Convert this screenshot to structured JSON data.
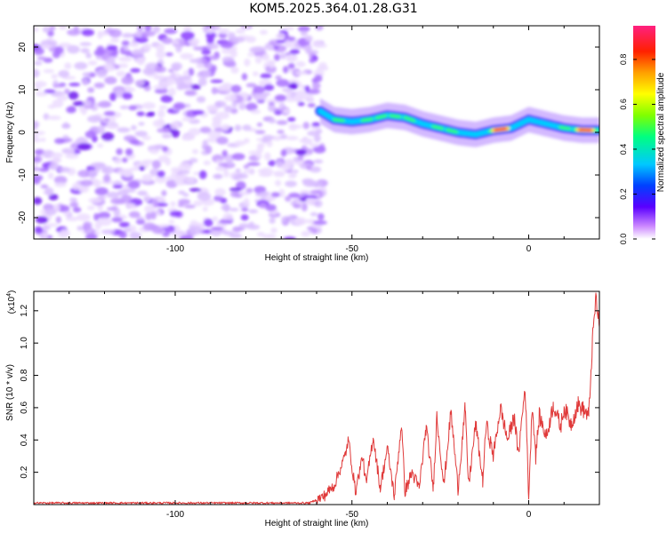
{
  "title": "KOM5.2025.364.01.28.G31",
  "chart_data": [
    {
      "type": "heatmap",
      "xlabel": "Height of straight line (km)",
      "ylabel": "Frequency (Hz)",
      "xlim": [
        -140,
        20
      ],
      "ylim": [
        -25,
        25
      ],
      "xticks": [
        -100,
        -50,
        0
      ],
      "xtick_labels": [
        "-100",
        "-50",
        "0"
      ],
      "yticks": [
        -20,
        -10,
        0,
        10,
        20
      ],
      "ytick_labels": [
        "-20",
        "-10",
        "0",
        "10",
        "20"
      ],
      "colorbar": {
        "label": "Normalized spectral amplitude",
        "range": [
          0.0,
          0.95
        ],
        "ticks": [
          0.0,
          0.2,
          0.4,
          0.6,
          0.8
        ],
        "tick_labels": [
          "0.0",
          "0.2",
          "0.4",
          "0.6",
          "0.8"
        ]
      },
      "noise_region_x": [
        -140,
        -58
      ],
      "signal_track": {
        "x": [
          -59,
          -55,
          -50,
          -45,
          -40,
          -35,
          -30,
          -25,
          -20,
          -15,
          -10,
          -5,
          0,
          5,
          10,
          15,
          20
        ],
        "frequency": [
          5,
          3,
          2.5,
          3,
          4,
          3.5,
          2,
          1,
          0,
          -0.5,
          0.5,
          1,
          3,
          2,
          1,
          0.5,
          0.5
        ]
      },
      "peak_regions_x": [
        [
          -10,
          -6
        ],
        [
          14,
          18
        ]
      ],
      "grid": false
    },
    {
      "type": "line",
      "xlabel": "Height of straight line (km)",
      "ylabel": "SNR (10 * v/v)",
      "y_multiplier_label": "(x10",
      "y_multiplier_exp": "4",
      "y_multiplier_close": ")",
      "xlim": [
        -140,
        20
      ],
      "ylim": [
        0.0,
        1.32
      ],
      "xticks": [
        -100,
        -50,
        0
      ],
      "xtick_labels": [
        "-100",
        "-50",
        "0"
      ],
      "yticks": [
        0.2,
        0.4,
        0.6,
        0.8,
        1.0,
        1.2
      ],
      "ytick_labels": [
        "0.2",
        "0.4",
        "0.6",
        "0.8",
        "1.0",
        "1.2"
      ],
      "color": "#e03a3a",
      "series": [
        {
          "name": "SNR",
          "x": [
            -140,
            -100,
            -62,
            -58,
            -55,
            -52,
            -51,
            -49,
            -47,
            -46,
            -44,
            -42,
            -40,
            -38,
            -36,
            -35,
            -33,
            -31,
            -29,
            -27,
            -26,
            -24,
            -22,
            -20,
            -18,
            -17,
            -15,
            -13,
            -12,
            -10,
            -8,
            -6,
            -4,
            -3,
            -1,
            0,
            1,
            2,
            3,
            5,
            7,
            9,
            10,
            12,
            14,
            17,
            18,
            19,
            20
          ],
          "values": [
            0.01,
            0.01,
            0.01,
            0.05,
            0.12,
            0.3,
            0.4,
            0.08,
            0.3,
            0.12,
            0.42,
            0.1,
            0.35,
            0.05,
            0.5,
            0.08,
            0.2,
            0.1,
            0.48,
            0.1,
            0.55,
            0.12,
            0.58,
            0.1,
            0.6,
            0.12,
            0.5,
            0.15,
            0.5,
            0.3,
            0.6,
            0.4,
            0.55,
            0.3,
            0.73,
            0.05,
            0.62,
            0.3,
            0.55,
            0.42,
            0.62,
            0.48,
            0.6,
            0.5,
            0.62,
            0.55,
            1.0,
            1.28,
            1.1
          ]
        }
      ],
      "grid": false
    }
  ]
}
